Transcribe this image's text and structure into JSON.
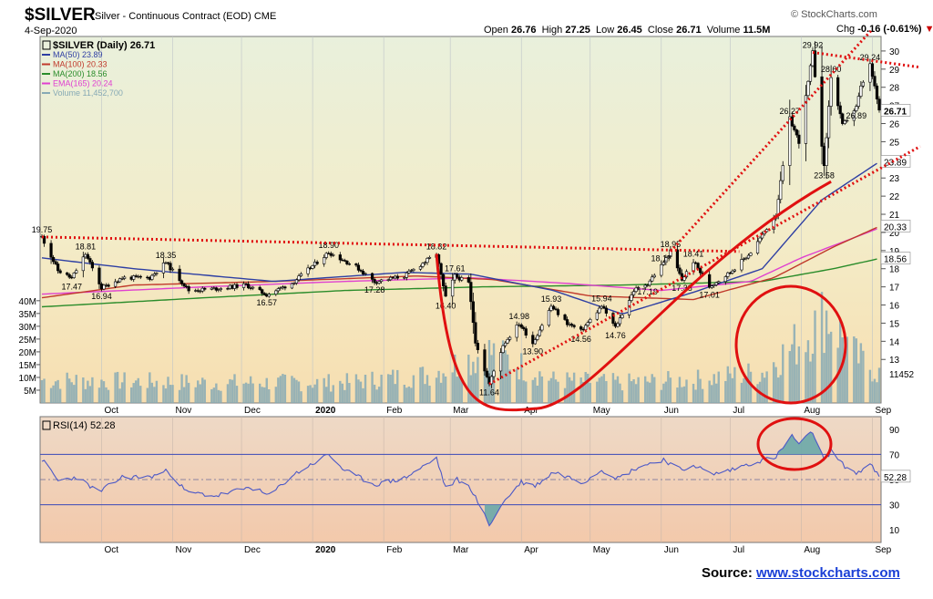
{
  "header": {
    "symbol": "$SILVER",
    "name_prefix": "Silver - Continuous Contract (EOD)",
    "exchange": "CME",
    "date": "4-Sep-2020",
    "logo": "© StockCharts.com",
    "open_label": "Open",
    "open": "26.76",
    "high_label": "High",
    "high": "27.25",
    "low_label": "Low",
    "low": "26.45",
    "close_label": "Close",
    "close": "26.71",
    "volume_label": "Volume",
    "volume": "11.5M",
    "chg_label": "Chg",
    "chg": "-0.16 (-0.61%)"
  },
  "source": {
    "label": "Source:",
    "link": "www.stockcharts.com"
  },
  "colors": {
    "price_bg": "#fbe9c4",
    "rsi_bg": "#f6d3bc",
    "ma50": "#2e3fa3",
    "ma100": "#c0392b",
    "ma200": "#2a8c2a",
    "ema165": "#e040d0",
    "volume": "#87aab5",
    "annotation": "#e01010",
    "rsi_line": "#4c59c7"
  },
  "chart_data": [
    {
      "type": "candlestick",
      "title": "$SILVER (Daily) 26.71",
      "legend": [
        {
          "name": "MA(50) 23.89",
          "color": "#2e3fa3"
        },
        {
          "name": "MA(100) 20.33",
          "color": "#c0392b"
        },
        {
          "name": "MA(200) 18.56",
          "color": "#2a8c2a"
        },
        {
          "name": "EMA(165) 20.24",
          "color": "#e040d0"
        },
        {
          "name": "Volume 11,452,700",
          "color": "#87aab5"
        }
      ],
      "ylim": [
        10.6,
        30.8
      ],
      "y_ticks": [
        13,
        14,
        15,
        16,
        17,
        18,
        19,
        20,
        21,
        22,
        23,
        24,
        25,
        26,
        27,
        28,
        29,
        30
      ],
      "x_labels": [
        "Oct",
        "Nov",
        "Dec",
        "2020",
        "Feb",
        "Mar",
        "Apr",
        "May",
        "Jun",
        "Jul",
        "Aug",
        "Sep"
      ],
      "x_label_dates": [
        "2019-10-01",
        "2019-11-01",
        "2019-12-01",
        "2020-01-01",
        "2020-02-01",
        "2020-03-01",
        "2020-04-01",
        "2020-05-01",
        "2020-06-01",
        "2020-07-01",
        "2020-08-01",
        "2020-09-01"
      ],
      "price_key_points": [
        [
          "2019-09-05",
          19.75
        ],
        [
          "2019-09-12",
          17.9
        ],
        [
          "2019-09-18",
          17.47
        ],
        [
          "2019-09-24",
          18.81
        ],
        [
          "2019-10-01",
          16.94
        ],
        [
          "2019-10-10",
          17.5
        ],
        [
          "2019-10-22",
          17.5
        ],
        [
          "2019-10-29",
          18.35
        ],
        [
          "2019-11-08",
          16.8
        ],
        [
          "2019-11-20",
          16.9
        ],
        [
          "2019-12-03",
          17.1
        ],
        [
          "2019-12-12",
          16.57
        ],
        [
          "2019-12-23",
          17.2
        ],
        [
          "2020-01-08",
          18.9
        ],
        [
          "2020-01-20",
          18.1
        ],
        [
          "2020-01-28",
          17.28
        ],
        [
          "2020-02-10",
          17.6
        ],
        [
          "2020-02-24",
          18.82
        ],
        [
          "2020-02-28",
          16.4
        ],
        [
          "2020-03-03",
          17.61
        ],
        [
          "2020-03-09",
          17.2
        ],
        [
          "2020-03-12",
          14.0
        ],
        [
          "2020-03-18",
          11.64
        ],
        [
          "2020-03-24",
          13.8
        ],
        [
          "2020-03-31",
          14.98
        ],
        [
          "2020-04-06",
          13.9
        ],
        [
          "2020-04-14",
          15.93
        ],
        [
          "2020-04-21",
          15.0
        ],
        [
          "2020-04-27",
          14.56
        ],
        [
          "2020-05-06",
          15.94
        ],
        [
          "2020-05-12",
          14.76
        ],
        [
          "2020-05-20",
          16.8
        ],
        [
          "2020-05-26",
          17.19
        ],
        [
          "2020-06-01",
          18.17
        ],
        [
          "2020-06-05",
          18.95
        ],
        [
          "2020-06-10",
          17.38
        ],
        [
          "2020-06-15",
          18.41
        ],
        [
          "2020-06-22",
          17.01
        ],
        [
          "2020-07-01",
          17.8
        ],
        [
          "2020-07-10",
          18.9
        ],
        [
          "2020-07-21",
          21.0
        ],
        [
          "2020-07-27",
          26.27
        ],
        [
          "2020-07-31",
          25.0
        ],
        [
          "2020-08-06",
          29.92
        ],
        [
          "2020-08-11",
          23.58
        ],
        [
          "2020-08-14",
          28.6
        ],
        [
          "2020-08-19",
          25.9
        ],
        [
          "2020-08-25",
          26.89
        ],
        [
          "2020-08-27",
          28.0
        ],
        [
          "2020-08-31",
          29.24
        ],
        [
          "2020-09-04",
          26.71
        ]
      ],
      "price_labels": [
        {
          "text": "19.75",
          "date": "2019-09-05",
          "value": 19.75,
          "pos": "above"
        },
        {
          "text": "18.81",
          "date": "2019-09-24",
          "value": 18.81,
          "pos": "above"
        },
        {
          "text": "17.47",
          "date": "2019-09-18",
          "value": 17.47,
          "pos": "below"
        },
        {
          "text": "16.94",
          "date": "2019-10-01",
          "value": 16.94,
          "pos": "below"
        },
        {
          "text": "18.35",
          "date": "2019-10-29",
          "value": 18.35,
          "pos": "above"
        },
        {
          "text": "16.57",
          "date": "2019-12-12",
          "value": 16.57,
          "pos": "below"
        },
        {
          "text": "18.90",
          "date": "2020-01-08",
          "value": 18.9,
          "pos": "above"
        },
        {
          "text": "17.28",
          "date": "2020-01-28",
          "value": 17.28,
          "pos": "below"
        },
        {
          "text": "18.82",
          "date": "2020-02-24",
          "value": 18.82,
          "pos": "above"
        },
        {
          "text": "17.61",
          "date": "2020-03-03",
          "value": 17.61,
          "pos": "above"
        },
        {
          "text": "16.40",
          "date": "2020-02-28",
          "value": 16.4,
          "pos": "below"
        },
        {
          "text": "11.64",
          "date": "2020-03-18",
          "value": 11.64,
          "pos": "below"
        },
        {
          "text": "14.98",
          "date": "2020-03-31",
          "value": 14.98,
          "pos": "above"
        },
        {
          "text": "13.90",
          "date": "2020-04-06",
          "value": 13.9,
          "pos": "below"
        },
        {
          "text": "15.93",
          "date": "2020-04-14",
          "value": 15.93,
          "pos": "above"
        },
        {
          "text": "14.56",
          "date": "2020-04-27",
          "value": 14.56,
          "pos": "below"
        },
        {
          "text": "15.94",
          "date": "2020-05-06",
          "value": 15.94,
          "pos": "above"
        },
        {
          "text": "14.76",
          "date": "2020-05-12",
          "value": 14.76,
          "pos": "below"
        },
        {
          "text": "17.19",
          "date": "2020-05-26",
          "value": 17.19,
          "pos": "below"
        },
        {
          "text": "18.17",
          "date": "2020-06-01",
          "value": 18.17,
          "pos": "above"
        },
        {
          "text": "18.95",
          "date": "2020-06-05",
          "value": 18.95,
          "pos": "above"
        },
        {
          "text": "18.41",
          "date": "2020-06-15",
          "value": 18.41,
          "pos": "above"
        },
        {
          "text": "17.38",
          "date": "2020-06-10",
          "value": 17.38,
          "pos": "below"
        },
        {
          "text": "17.01",
          "date": "2020-06-22",
          "value": 17.01,
          "pos": "below"
        },
        {
          "text": "26.27",
          "date": "2020-07-27",
          "value": 26.27,
          "pos": "above"
        },
        {
          "text": "29.92",
          "date": "2020-08-06",
          "value": 29.92,
          "pos": "above"
        },
        {
          "text": "23.58",
          "date": "2020-08-11",
          "value": 23.58,
          "pos": "below"
        },
        {
          "text": "28.60",
          "date": "2020-08-14",
          "value": 28.6,
          "pos": "above"
        },
        {
          "text": "26.89",
          "date": "2020-08-25",
          "value": 26.89,
          "pos": "below"
        },
        {
          "text": "29.24",
          "date": "2020-08-31",
          "value": 29.24,
          "pos": "above"
        }
      ],
      "ma50_points": [
        [
          "2019-09-05",
          18.6
        ],
        [
          "2019-10-15",
          18.0
        ],
        [
          "2019-12-15",
          17.3
        ],
        [
          "2020-02-10",
          17.8
        ],
        [
          "2020-03-10",
          17.7
        ],
        [
          "2020-04-15",
          16.8
        ],
        [
          "2020-05-15",
          15.5
        ],
        [
          "2020-06-15",
          16.7
        ],
        [
          "2020-07-15",
          18.0
        ],
        [
          "2020-08-10",
          21.8
        ],
        [
          "2020-09-04",
          23.89
        ]
      ],
      "ma100_points": [
        [
          "2019-09-05",
          16.4
        ],
        [
          "2019-10-15",
          17.1
        ],
        [
          "2019-12-15",
          17.3
        ],
        [
          "2020-02-15",
          17.6
        ],
        [
          "2020-03-20",
          17.4
        ],
        [
          "2020-05-01",
          16.5
        ],
        [
          "2020-06-15",
          16.3
        ],
        [
          "2020-07-20",
          17.5
        ],
        [
          "2020-08-15",
          19.2
        ],
        [
          "2020-09-04",
          20.33
        ]
      ],
      "ma200_points": [
        [
          "2019-09-05",
          15.9
        ],
        [
          "2019-11-15",
          16.4
        ],
        [
          "2020-01-15",
          16.8
        ],
        [
          "2020-03-15",
          17.0
        ],
        [
          "2020-05-15",
          17.1
        ],
        [
          "2020-07-15",
          17.3
        ],
        [
          "2020-08-15",
          18.0
        ],
        [
          "2020-09-04",
          18.56
        ]
      ],
      "ema165_points": [
        [
          "2019-09-05",
          16.6
        ],
        [
          "2019-11-15",
          17.0
        ],
        [
          "2020-01-15",
          17.3
        ],
        [
          "2020-03-10",
          17.5
        ],
        [
          "2020-04-20",
          17.2
        ],
        [
          "2020-06-01",
          16.8
        ],
        [
          "2020-07-10",
          17.3
        ],
        [
          "2020-08-01",
          18.6
        ],
        [
          "2020-09-04",
          20.24
        ]
      ],
      "right_labels": [
        {
          "text": "26.71",
          "value": 26.71,
          "boxed": true
        },
        {
          "text": "23.89",
          "value": 23.89,
          "boxed": true
        },
        {
          "text": "20.33",
          "value": 20.33,
          "boxed": true
        },
        {
          "text": "18.56",
          "value": 18.56,
          "boxed": true
        }
      ]
    },
    {
      "type": "bar",
      "title": "Volume",
      "units": "M",
      "y_ticks": [
        5,
        10,
        15,
        20,
        25,
        30,
        35,
        40
      ],
      "y_tick_labels": [
        "5M",
        "10M",
        "15M",
        "20M",
        "25M",
        "30M",
        "35M",
        "40M"
      ],
      "ylim": [
        0,
        40
      ],
      "last_value_label": "11452",
      "last_value": 11.45,
      "volume_level_points": [
        [
          "2019-09-05",
          9
        ],
        [
          "2019-11-15",
          8
        ],
        [
          "2020-01-15",
          8
        ],
        [
          "2020-02-20",
          11
        ],
        [
          "2020-03-18",
          20
        ],
        [
          "2020-04-15",
          9
        ],
        [
          "2020-05-15",
          8
        ],
        [
          "2020-06-15",
          9
        ],
        [
          "2020-07-15",
          12
        ],
        [
          "2020-08-05",
          28
        ],
        [
          "2020-08-12",
          35
        ],
        [
          "2020-08-25",
          18
        ],
        [
          "2020-09-04",
          11.45
        ]
      ]
    },
    {
      "type": "line",
      "title": "RSI(14) 52.28",
      "ylim": [
        0,
        100
      ],
      "y_ticks": [
        10,
        30,
        50,
        70,
        90
      ],
      "reference_lines": [
        30,
        70
      ],
      "dashed_line": 50,
      "last_value_label": "52.28",
      "rsi_points": [
        [
          "2019-09-05",
          66
        ],
        [
          "2019-09-12",
          49
        ],
        [
          "2019-09-20",
          52
        ],
        [
          "2019-09-30",
          40
        ],
        [
          "2019-10-10",
          52
        ],
        [
          "2019-10-22",
          52
        ],
        [
          "2019-10-30",
          57
        ],
        [
          "2019-11-07",
          40
        ],
        [
          "2019-11-20",
          37
        ],
        [
          "2019-12-05",
          44
        ],
        [
          "2019-12-13",
          37
        ],
        [
          "2019-12-23",
          53
        ],
        [
          "2020-01-08",
          70
        ],
        [
          "2020-01-15",
          57
        ],
        [
          "2020-01-28",
          46
        ],
        [
          "2020-02-10",
          51
        ],
        [
          "2020-02-24",
          67
        ],
        [
          "2020-02-28",
          43
        ],
        [
          "2020-03-04",
          50
        ],
        [
          "2020-03-10",
          43
        ],
        [
          "2020-03-18",
          14
        ],
        [
          "2020-03-25",
          34
        ],
        [
          "2020-04-01",
          48
        ],
        [
          "2020-04-07",
          45
        ],
        [
          "2020-04-15",
          56
        ],
        [
          "2020-04-28",
          48
        ],
        [
          "2020-05-06",
          58
        ],
        [
          "2020-05-13",
          51
        ],
        [
          "2020-05-22",
          60
        ],
        [
          "2020-06-02",
          66
        ],
        [
          "2020-06-10",
          57
        ],
        [
          "2020-06-15",
          62
        ],
        [
          "2020-06-23",
          54
        ],
        [
          "2020-07-02",
          58
        ],
        [
          "2020-07-10",
          63
        ],
        [
          "2020-07-21",
          68
        ],
        [
          "2020-07-28",
          85
        ],
        [
          "2020-07-31",
          78
        ],
        [
          "2020-08-06",
          88
        ],
        [
          "2020-08-11",
          65
        ],
        [
          "2020-08-14",
          73
        ],
        [
          "2020-08-19",
          62
        ],
        [
          "2020-08-25",
          55
        ],
        [
          "2020-08-31",
          62
        ],
        [
          "2020-09-04",
          52.28
        ]
      ],
      "x_labels": [
        "Oct",
        "Nov",
        "Dec",
        "2020",
        "Feb",
        "Mar",
        "Apr",
        "May",
        "Jun",
        "Jul",
        "Aug",
        "Sep"
      ]
    }
  ]
}
